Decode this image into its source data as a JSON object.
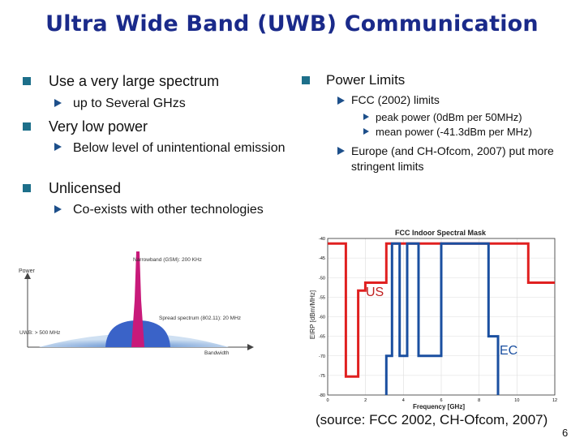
{
  "slide": {
    "title": "Ultra Wide Band (UWB) Communication",
    "left_bullets": [
      {
        "text": "Use a very large spectrum",
        "subs": [
          "up to Several GHzs"
        ]
      },
      {
        "text": "Very low power",
        "subs": [
          "Below level of unintentional emission"
        ]
      },
      {
        "text": "Unlicensed",
        "subs": [
          "Co-exists with other technologies"
        ]
      }
    ],
    "right_bullet": {
      "text": "Power Limits",
      "subs": [
        {
          "text": "FCC (2002) limits",
          "subsubs": [
            "peak power (0dBm per 50MHz)",
            "mean power (-41.3dBm per MHz)"
          ]
        },
        {
          "text": "Europe (and CH-Ofcom, 2007) put more stringent limits"
        }
      ]
    },
    "source": "(source: FCC 2002, CH-Ofcom, 2007)",
    "page_number": "6"
  },
  "spectrum_diagram": {
    "power_label": "Power",
    "bandwidth_label": "Bandwidth",
    "narrowband_label": "Narrowband (GSM): 200 KHz",
    "spread_label": "Spread spectrum (802.11): 20 MHz",
    "uwb_label": "UWB: > 500 MHz",
    "colors": {
      "narrowband": "#c81a7a",
      "spread": "#3a63c8",
      "uwb": "#8fb6de"
    }
  },
  "chart_data": {
    "type": "line",
    "title": "FCC Indoor Spectral Mask",
    "xlabel": "Frequency [GHz]",
    "ylabel": "EIRP [dBm/MHz]",
    "xlim": [
      0,
      12
    ],
    "ylim": [
      -80,
      -40
    ],
    "x_ticks": [
      "0",
      "2",
      "4",
      "6",
      "8",
      "10",
      "12"
    ],
    "y_ticks": [
      "-40",
      "-45",
      "-50",
      "-55",
      "-60",
      "-65",
      "-70",
      "-75",
      "-80"
    ],
    "grid": true,
    "series": [
      {
        "name": "US",
        "color": "#e02020",
        "x": [
          0,
          0.96,
          0.96,
          1.61,
          1.61,
          1.99,
          1.99,
          3.1,
          3.1,
          10.6,
          10.6,
          12
        ],
        "y": [
          -41.3,
          -41.3,
          -75.3,
          -75.3,
          -53.3,
          -53.3,
          -51.3,
          -51.3,
          -41.3,
          -41.3,
          -51.3,
          -51.3
        ]
      },
      {
        "name": "EC",
        "color": "#1a4fa0",
        "x": [
          3.1,
          3.1,
          3.4,
          3.4,
          3.8,
          3.8,
          4.2,
          4.2,
          4.8,
          4.8,
          6.0,
          6.0,
          8.5,
          8.5,
          9.0,
          9.0
        ],
        "y": [
          -80,
          -70,
          -70,
          -41.3,
          -41.3,
          -70,
          -70,
          -41.3,
          -41.3,
          -70,
          -70,
          -41.3,
          -41.3,
          -65,
          -65,
          -80
        ]
      }
    ],
    "annotations": [
      "US",
      "EC"
    ]
  }
}
